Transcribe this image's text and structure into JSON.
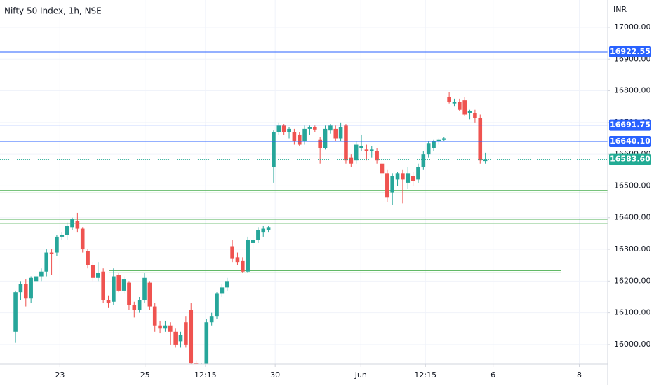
{
  "chart_data": {
    "type": "candlestick",
    "title": "Nifty 50 Index, 1h, NSE",
    "y_axis_label": "INR",
    "up_color": "#26a69a",
    "down_color": "#ef5350",
    "grid": true,
    "xlim": [
      -3,
      114.7
    ],
    "ylim": [
      15938,
      17086
    ],
    "xticks": [
      {
        "value": 8.6,
        "label": "23"
      },
      {
        "value": 25.1,
        "label": "25"
      },
      {
        "value": 36.8,
        "label": "12:15"
      },
      {
        "value": 50.3,
        "label": "30"
      },
      {
        "value": 66.9,
        "label": "Jun"
      },
      {
        "value": 79.4,
        "label": "12:15"
      },
      {
        "value": 92.5,
        "label": "6"
      },
      {
        "value": 109.2,
        "label": "8"
      }
    ],
    "yticks": [
      {
        "value": 16000,
        "label": "16000.00"
      },
      {
        "value": 16100,
        "label": "16100.00"
      },
      {
        "value": 16200,
        "label": "16200.00"
      },
      {
        "value": 16300,
        "label": "16300.00"
      },
      {
        "value": 16400,
        "label": "16400.00"
      },
      {
        "value": 16500,
        "label": "16500.00"
      },
      {
        "value": 16600,
        "label": "16600.00"
      },
      {
        "value": 16700,
        "label": "16700.00"
      },
      {
        "value": 16800,
        "label": "16800.00"
      },
      {
        "value": 16900,
        "label": "16900.00"
      },
      {
        "value": 17000,
        "label": "17000.00"
      }
    ],
    "open": [
      16040,
      16165,
      16190,
      16145,
      16200,
      16215,
      16230,
      16290,
      16290,
      16340,
      16345,
      16370,
      16390,
      16365,
      16295,
      16250,
      16210,
      16230,
      16140,
      16135,
      16220,
      16170,
      16195,
      16125,
      16110,
      16140,
      16195,
      16120,
      16060,
      16050,
      16060,
      16040,
      16010,
      16070,
      16110,
      15940,
      15920,
      15930,
      16070,
      16090,
      16160,
      16180,
      16310,
      16275,
      16265,
      16230,
      16320,
      16330,
      16355,
      16360,
      16560,
      16670,
      16690,
      16670,
      16670,
      16660,
      16640,
      16680,
      16685,
      16645,
      16620,
      16675,
      16680,
      16650,
      16690,
      16590,
      16580,
      16620,
      16615,
      16610,
      16610,
      16570,
      16540,
      16480,
      16520,
      16540,
      16510,
      16530,
      16520,
      16560,
      16600,
      16620,
      16640,
      16645,
      16780,
      16760,
      16765,
      16770,
      16730,
      16730,
      16715,
      16578
    ],
    "high": [
      16170,
      16200,
      16205,
      16215,
      16225,
      16240,
      16300,
      16300,
      16345,
      16355,
      16385,
      16400,
      16415,
      16370,
      16300,
      16260,
      16260,
      16240,
      16155,
      16240,
      16225,
      16215,
      16200,
      16135,
      16150,
      16225,
      16200,
      16130,
      16075,
      16075,
      16070,
      16050,
      16040,
      16090,
      16130,
      15950,
      15940,
      16080,
      16100,
      16165,
      16190,
      16210,
      16330,
      16290,
      16275,
      16340,
      16345,
      16370,
      16375,
      16375,
      16675,
      16700,
      16695,
      16685,
      16680,
      16670,
      16690,
      16690,
      16690,
      16655,
      16690,
      16695,
      16690,
      16700,
      16695,
      16600,
      16640,
      16660,
      16630,
      16625,
      16620,
      16580,
      16550,
      16540,
      16545,
      16550,
      16560,
      16545,
      16570,
      16610,
      16640,
      16645,
      16650,
      16655,
      16795,
      16775,
      16775,
      16780,
      16740,
      16740,
      16725,
      16605
    ],
    "low": [
      16005,
      16140,
      16120,
      16130,
      16190,
      16200,
      16215,
      16220,
      16280,
      16330,
      16330,
      16360,
      16355,
      16290,
      16240,
      16200,
      16200,
      16130,
      16115,
      16125,
      16165,
      16160,
      16110,
      16085,
      16100,
      16130,
      16110,
      16040,
      16035,
      16040,
      16000,
      15990,
      15990,
      15990,
      15930,
      15920,
      15915,
      15920,
      16060,
      16080,
      16150,
      16170,
      16260,
      16250,
      16225,
      16225,
      16300,
      16320,
      16340,
      16355,
      16510,
      16660,
      16660,
      16650,
      16630,
      16625,
      16630,
      16660,
      16670,
      16570,
      16615,
      16665,
      16640,
      16640,
      16570,
      16560,
      16570,
      16610,
      16580,
      16590,
      16570,
      16520,
      16450,
      16440,
      16500,
      16445,
      16490,
      16500,
      16510,
      16550,
      16590,
      16610,
      16630,
      16640,
      16760,
      16750,
      16735,
      16720,
      16710,
      16700,
      16570,
      16570
    ],
    "close": [
      16165,
      16190,
      16145,
      16210,
      16215,
      16230,
      16290,
      16285,
      16340,
      16345,
      16375,
      16395,
      16365,
      16300,
      16250,
      16210,
      16225,
      16140,
      16130,
      16215,
      16170,
      16205,
      16125,
      16110,
      16140,
      16210,
      16120,
      16060,
      16050,
      16060,
      16040,
      16000,
      16030,
      16000,
      15940,
      15925,
      15935,
      16070,
      16090,
      16160,
      16180,
      16200,
      16270,
      16260,
      16230,
      16330,
      16330,
      16360,
      16365,
      16370,
      16670,
      16690,
      16670,
      16680,
      16640,
      16630,
      16680,
      16685,
      16678,
      16620,
      16680,
      16690,
      16650,
      16685,
      16580,
      16570,
      16630,
      16625,
      16610,
      16615,
      16580,
      16540,
      16465,
      16530,
      16540,
      16520,
      16540,
      16515,
      16560,
      16600,
      16635,
      16640,
      16645,
      16650,
      16765,
      16765,
      16740,
      16725,
      16735,
      16715,
      16580,
      16583.6
    ],
    "hlines": [
      {
        "value": 16922.55,
        "label": "16922.55",
        "color": "#2962ff"
      },
      {
        "value": 16691.75,
        "label": "16691.75",
        "color": "#2962ff"
      },
      {
        "value": 16640.1,
        "label": "16640.10",
        "color": "#2962ff"
      }
    ],
    "zones": [
      {
        "values": [
          16485,
          16478
        ],
        "color": "#4caf50"
      },
      {
        "values": [
          16395,
          16382
        ],
        "color": "#4caf50"
      },
      {
        "values": [
          16233,
          16228
        ],
        "color": "#4caf50",
        "x": [
          18.1,
          105.7
        ]
      }
    ],
    "last_price": {
      "value": 16583.6,
      "label": "16583.60",
      "color": "#22ab94"
    }
  }
}
